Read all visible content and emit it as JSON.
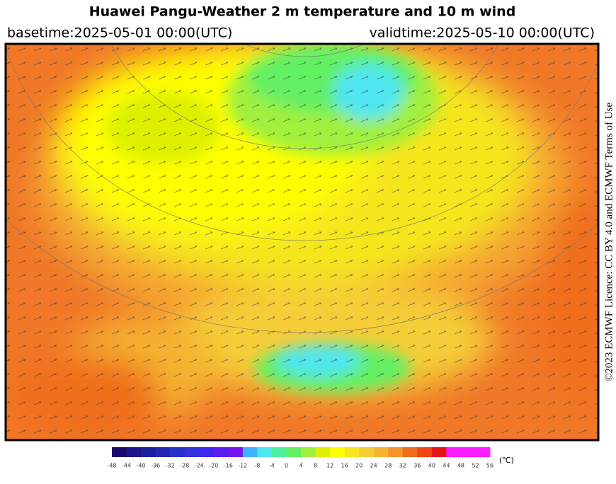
{
  "header": {
    "title": "Huawei Pangu-Weather  2 m temperature and 10 m wind",
    "basetime": "basetime:2025-05-01 00:00(UTC)",
    "validtime": "validtime:2025-05-10 00:00(UTC)"
  },
  "license": "©2023 ECMWF Licence: CC BY 4.0 and ECMWF Terms of Use",
  "colorbar": {
    "unit": "(℃)",
    "ticks": [
      -48,
      -44,
      -40,
      -36,
      -32,
      -28,
      -24,
      -20,
      -16,
      -12,
      -8,
      -4,
      0,
      4,
      8,
      12,
      16,
      20,
      24,
      28,
      32,
      36,
      40,
      44,
      48,
      52,
      56
    ],
    "colors": [
      "#1a0a6e",
      "#1e148c",
      "#1e1ea0",
      "#2328b4",
      "#2832c8",
      "#3232dc",
      "#3c28f0",
      "#5a1ef0",
      "#7814f0",
      "#3cb4ff",
      "#50e6f0",
      "#50f0a0",
      "#64f064",
      "#a0f03c",
      "#dcf000",
      "#ffff00",
      "#f8e61e",
      "#f5cd37",
      "#f5b432",
      "#f5962d",
      "#f06e1e",
      "#f04614",
      "#e61414",
      "#ff1eff",
      "#ff1eff",
      "#ff1eff"
    ]
  }
}
